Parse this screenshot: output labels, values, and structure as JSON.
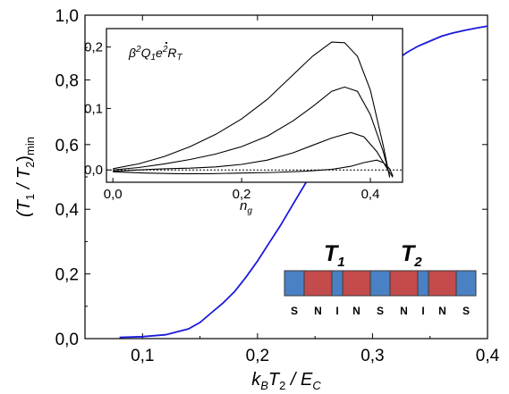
{
  "chart_data": [
    {
      "type": "line",
      "xlabel": {
        "parts": [
          "k",
          "B",
          "T",
          "2",
          " / E",
          "C"
        ]
      },
      "ylabel": {
        "parts": [
          "(T",
          "1",
          " / T",
          "2",
          ")",
          "min"
        ]
      },
      "xlim": [
        0.05,
        0.4
      ],
      "ylim": [
        0.0,
        1.0
      ],
      "x_ticks": [
        0.1,
        0.2,
        0.3,
        0.4
      ],
      "x_tick_labels": [
        "0,1",
        "0,2",
        "0,3",
        "0,4"
      ],
      "y_ticks": [
        0.0,
        0.2,
        0.4,
        0.6,
        0.8,
        1.0
      ],
      "y_tick_labels": [
        "0,0",
        "0,2",
        "0,4",
        "0,6",
        "0,8",
        "1,0"
      ],
      "grid": false,
      "series": [
        {
          "color": "#1a1adc",
          "x": [
            0.08,
            0.1,
            0.12,
            0.14,
            0.15,
            0.16,
            0.17,
            0.18,
            0.19,
            0.2,
            0.21,
            0.22,
            0.23,
            0.24,
            0.25,
            0.26,
            0.27,
            0.28,
            0.29,
            0.3,
            0.31,
            0.32,
            0.33,
            0.34,
            0.35,
            0.36,
            0.37,
            0.38,
            0.39,
            0.4
          ],
          "y": [
            0.004,
            0.006,
            0.012,
            0.03,
            0.05,
            0.08,
            0.11,
            0.145,
            0.19,
            0.24,
            0.295,
            0.35,
            0.41,
            0.47,
            0.53,
            0.59,
            0.65,
            0.7,
            0.75,
            0.79,
            0.83,
            0.86,
            0.885,
            0.905,
            0.92,
            0.935,
            0.945,
            0.953,
            0.96,
            0.966
          ]
        }
      ]
    },
    {
      "type": "line",
      "role": "inset",
      "xlabel": {
        "parts": [
          "n",
          "g"
        ]
      },
      "ylabel": "",
      "annotation": {
        "parts": [
          "β",
          "2",
          "Q",
          "1",
          "e",
          "2",
          "R",
          "T"
        ]
      },
      "xlim": [
        -0.01,
        0.45
      ],
      "ylim": [
        -0.02,
        0.23
      ],
      "x_ticks": [
        0.0,
        0.2,
        0.4
      ],
      "x_tick_labels": [
        "0,0",
        "0,2",
        "0,4"
      ],
      "y_ticks": [
        0.0,
        0.1,
        0.2
      ],
      "y_tick_labels": [
        "0,0",
        "0,1",
        "0,2"
      ],
      "reference_line": {
        "y": 0.0,
        "style": "dotted"
      },
      "series": [
        {
          "color": "#000000",
          "x": [
            0.0,
            0.04,
            0.08,
            0.12,
            0.16,
            0.2,
            0.24,
            0.28,
            0.31,
            0.34,
            0.36,
            0.38,
            0.4,
            0.42,
            0.43
          ],
          "y": [
            0.002,
            0.01,
            0.022,
            0.038,
            0.058,
            0.083,
            0.115,
            0.155,
            0.185,
            0.208,
            0.207,
            0.185,
            0.13,
            0.04,
            -0.012
          ]
        },
        {
          "color": "#000000",
          "x": [
            0.0,
            0.04,
            0.08,
            0.12,
            0.16,
            0.2,
            0.24,
            0.28,
            0.31,
            0.34,
            0.36,
            0.38,
            0.4,
            0.42,
            0.43
          ],
          "y": [
            0.0,
            0.004,
            0.01,
            0.017,
            0.026,
            0.038,
            0.055,
            0.08,
            0.103,
            0.128,
            0.135,
            0.128,
            0.09,
            0.03,
            -0.01
          ]
        },
        {
          "color": "#000000",
          "x": [
            0.0,
            0.04,
            0.08,
            0.12,
            0.16,
            0.2,
            0.24,
            0.28,
            0.31,
            0.34,
            0.37,
            0.39,
            0.41,
            0.425,
            0.435
          ],
          "y": [
            -0.002,
            0.0,
            0.002,
            0.003,
            0.005,
            0.009,
            0.016,
            0.028,
            0.04,
            0.052,
            0.061,
            0.054,
            0.03,
            0.004,
            -0.012
          ]
        },
        {
          "color": "#000000",
          "x": [
            0.0,
            0.05,
            0.1,
            0.15,
            0.2,
            0.25,
            0.3,
            0.34,
            0.37,
            0.39,
            0.41,
            0.42,
            0.43,
            0.435
          ],
          "y": [
            -0.003,
            -0.005,
            -0.006,
            -0.006,
            -0.005,
            -0.004,
            -0.002,
            0.001,
            0.006,
            0.012,
            0.016,
            0.012,
            0.002,
            -0.01
          ]
        }
      ]
    }
  ],
  "device": {
    "labels": {
      "t1": [
        "T",
        "1"
      ],
      "t2": [
        "T",
        "2"
      ]
    },
    "blocks": [
      {
        "label": "S",
        "color": "#4a81c4"
      },
      {
        "label": "N",
        "color": "#c44b4b"
      },
      {
        "label": "I",
        "color": "#4a81c4"
      },
      {
        "label": "N",
        "color": "#c44b4b"
      },
      {
        "label": "S",
        "color": "#4a81c4"
      },
      {
        "label": "N",
        "color": "#c44b4b"
      },
      {
        "label": "I",
        "color": "#4a81c4"
      },
      {
        "label": "N",
        "color": "#c44b4b"
      },
      {
        "label": "S",
        "color": "#4a81c4"
      }
    ]
  }
}
